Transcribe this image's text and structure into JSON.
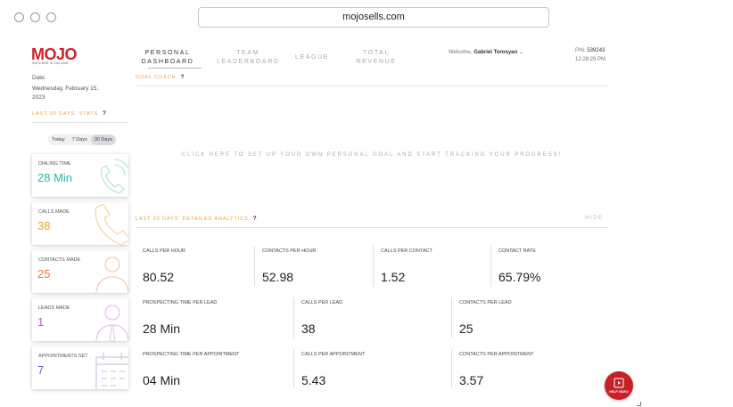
{
  "browser": {
    "url": "mojosells.com"
  },
  "brand": {
    "logo_text": "MOJO",
    "tagline": "SUCCESS IS CALLING",
    "accent": "#d0232a"
  },
  "date": {
    "label": "Date:",
    "value": "Wednesday, February 15, 2023"
  },
  "nav": {
    "items": [
      {
        "label": "PERSONAL DASHBOARD",
        "active": true
      },
      {
        "label": "TEAM LEADERBOARD",
        "active": false
      },
      {
        "label": "LEAGUE",
        "active": false
      },
      {
        "label": "TOTAL REVENUE",
        "active": false
      }
    ]
  },
  "user": {
    "welcome_prefix": "Welcome,",
    "name": "Gabriel Torosyan",
    "chevron_icon": "chevron-down-icon"
  },
  "pin": {
    "label": "PIN:",
    "value": "539243",
    "time": "12:28:29 PM"
  },
  "goal_coach": {
    "title": "GOAL COACH",
    "help": "?",
    "message": "CLICK HERE TO SET UP YOUR OWN PERSONAL GOAL AND START TRACKING YOUR PROGRESS!"
  },
  "stats": {
    "title": "LAST 30 DAYS' STATS",
    "help": "?",
    "filters": [
      {
        "label": "Today",
        "active": false
      },
      {
        "label": "7 Days",
        "active": false
      },
      {
        "label": "30 Days",
        "active": true
      }
    ],
    "cards": [
      {
        "label": "DIALING TIME",
        "value": "28 Min",
        "color": "#2bb6a5",
        "icon": "phone-ringing-icon"
      },
      {
        "label": "CALLS MADE",
        "value": "38",
        "color": "#e6a23c",
        "icon": "phone-icon"
      },
      {
        "label": "CONTACTS MADE",
        "value": "25",
        "color": "#e27a3f",
        "icon": "person-icon"
      },
      {
        "label": "LEADS MADE",
        "value": "1",
        "color": "#c45ad8",
        "icon": "person-tie-icon"
      },
      {
        "label": "APPOINTMENTS SET",
        "value": "7",
        "color": "#6a5fc9",
        "icon": "calendar-icon"
      }
    ]
  },
  "analytics": {
    "title": "LAST 30 DAYS' DETAILED ANALYTICS",
    "help": "?",
    "hide_label": "HIDE",
    "rows": [
      [
        {
          "label": "CALLS PER HOUR",
          "value": "80.52"
        },
        {
          "label": "CONTACTS PER HOUR",
          "value": "52.98"
        },
        {
          "label": "CALLS PER CONTACT",
          "value": "1.52"
        },
        {
          "label": "CONTACT RATE",
          "value": "65.79%"
        }
      ],
      [
        {
          "label": "PROSPECTING TIME PER LEAD",
          "value": "28 Min"
        },
        {
          "label": "CALLS PER LEAD",
          "value": "38"
        },
        {
          "label": "CONTACTS PER LEAD",
          "value": "25"
        }
      ],
      [
        {
          "label": "PROSPECTING TIME PER APPOINTMENT",
          "value": "04 Min"
        },
        {
          "label": "CALLS PER APPOINTMENT",
          "value": "5.43"
        },
        {
          "label": "CONTACTS PER APPOINTMENT",
          "value": "3.57"
        }
      ]
    ]
  },
  "help_video": {
    "label": "HELP VIDEO",
    "icon": "video-icon"
  }
}
